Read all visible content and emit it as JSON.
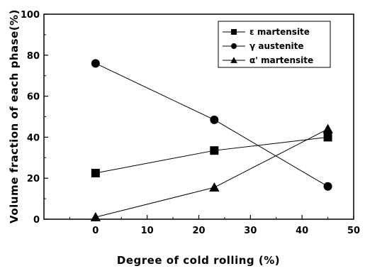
{
  "chart_data": {
    "type": "line",
    "xlabel": "Degree of cold rolling (%)",
    "ylabel": "Volume fraction of each phase(%)",
    "xlim": [
      -10,
      50
    ],
    "ylim": [
      0,
      100
    ],
    "x_ticks": [
      "0",
      "10",
      "20",
      "30",
      "40",
      "50"
    ],
    "y_ticks": [
      "0",
      "20",
      "40",
      "60",
      "80",
      "100"
    ],
    "x": [
      0,
      23,
      45
    ],
    "legend_position": "top-right",
    "grid": false,
    "series": [
      {
        "name": "ε martensite",
        "marker": "square",
        "values": [
          22.5,
          33.5,
          40
        ]
      },
      {
        "name": "γ austenite",
        "marker": "circle",
        "values": [
          76,
          48.5,
          16
        ]
      },
      {
        "name": "α' martensite",
        "marker": "triangle",
        "values": [
          1,
          15.5,
          44
        ]
      }
    ]
  }
}
